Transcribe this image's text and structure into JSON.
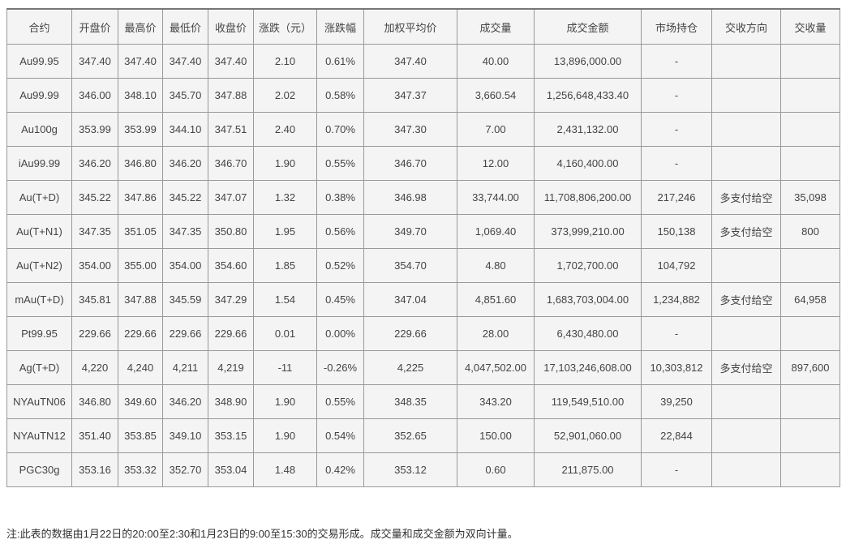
{
  "table": {
    "headers": [
      "合约",
      "开盘价",
      "最高价",
      "最低价",
      "收盘价",
      "涨跌（元）",
      "涨跌幅",
      "加权平均价",
      "成交量",
      "成交金额",
      "市场持仓",
      "交收方向",
      "交收量"
    ],
    "rows": [
      [
        "Au99.95",
        "347.40",
        "347.40",
        "347.40",
        "347.40",
        "2.10",
        "0.61%",
        "347.40",
        "40.00",
        "13,896,000.00",
        "-",
        "",
        ""
      ],
      [
        "Au99.99",
        "346.00",
        "348.10",
        "345.70",
        "347.88",
        "2.02",
        "0.58%",
        "347.37",
        "3,660.54",
        "1,256,648,433.40",
        "-",
        "",
        ""
      ],
      [
        "Au100g",
        "353.99",
        "353.99",
        "344.10",
        "347.51",
        "2.40",
        "0.70%",
        "347.30",
        "7.00",
        "2,431,132.00",
        "-",
        "",
        ""
      ],
      [
        "iAu99.99",
        "346.20",
        "346.80",
        "346.20",
        "346.70",
        "1.90",
        "0.55%",
        "346.70",
        "12.00",
        "4,160,400.00",
        "-",
        "",
        ""
      ],
      [
        "Au(T+D)",
        "345.22",
        "347.86",
        "345.22",
        "347.07",
        "1.32",
        "0.38%",
        "346.98",
        "33,744.00",
        "11,708,806,200.00",
        "217,246",
        "多支付给空",
        "35,098"
      ],
      [
        "Au(T+N1)",
        "347.35",
        "351.05",
        "347.35",
        "350.80",
        "1.95",
        "0.56%",
        "349.70",
        "1,069.40",
        "373,999,210.00",
        "150,138",
        "多支付给空",
        "800"
      ],
      [
        "Au(T+N2)",
        "354.00",
        "355.00",
        "354.00",
        "354.60",
        "1.85",
        "0.52%",
        "354.70",
        "4.80",
        "1,702,700.00",
        "104,792",
        "",
        ""
      ],
      [
        "mAu(T+D)",
        "345.81",
        "347.88",
        "345.59",
        "347.29",
        "1.54",
        "0.45%",
        "347.04",
        "4,851.60",
        "1,683,703,004.00",
        "1,234,882",
        "多支付给空",
        "64,958"
      ],
      [
        "Pt99.95",
        "229.66",
        "229.66",
        "229.66",
        "229.66",
        "0.01",
        "0.00%",
        "229.66",
        "28.00",
        "6,430,480.00",
        "-",
        "",
        ""
      ],
      [
        "Ag(T+D)",
        "4,220",
        "4,240",
        "4,211",
        "4,219",
        "-11",
        "-0.26%",
        "4,225",
        "4,047,502.00",
        "17,103,246,608.00",
        "10,303,812",
        "多支付给空",
        "897,600"
      ],
      [
        "NYAuTN06",
        "346.80",
        "349.60",
        "346.20",
        "348.90",
        "1.90",
        "0.55%",
        "348.35",
        "343.20",
        "119,549,510.00",
        "39,250",
        "",
        ""
      ],
      [
        "NYAuTN12",
        "351.40",
        "353.85",
        "349.10",
        "353.15",
        "1.90",
        "0.54%",
        "352.65",
        "150.00",
        "52,901,060.00",
        "22,844",
        "",
        ""
      ],
      [
        "PGC30g",
        "353.16",
        "353.32",
        "352.70",
        "353.04",
        "1.48",
        "0.42%",
        "353.12",
        "0.60",
        "211,875.00",
        "-",
        "",
        ""
      ]
    ],
    "column_keys": [
      "contract",
      "open",
      "high",
      "low",
      "close",
      "change-yuan",
      "change-pct",
      "weighted-avg-price",
      "volume",
      "turnover",
      "open-interest",
      "delivery-direction",
      "delivery-volume"
    ]
  },
  "note": "注:此表的数据由1月22日的20:00至2:30和1月23日的9:00至15:30的交易形成。成交量和成交金额为双向计量。",
  "colors": {
    "table_background": "#f4f4f4",
    "border": "#999999",
    "text": "#444444"
  }
}
